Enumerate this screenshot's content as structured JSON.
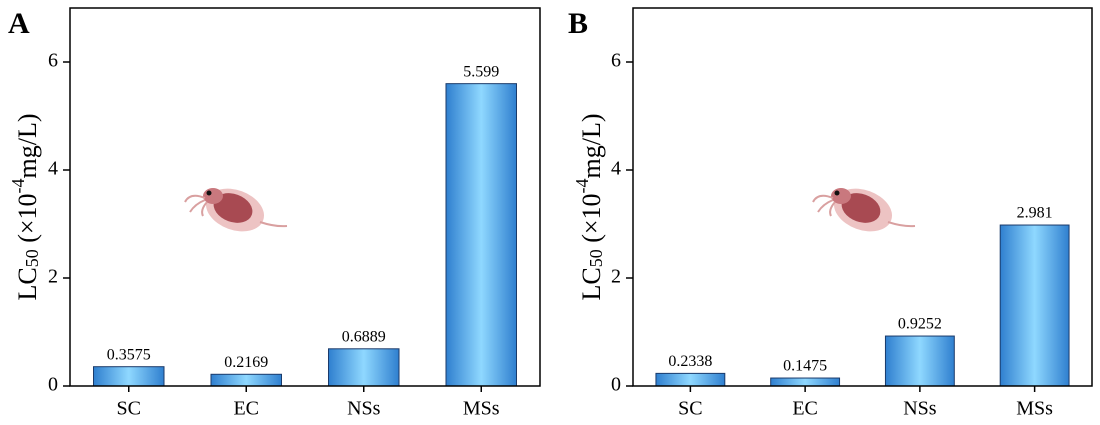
{
  "chart_data": [
    {
      "type": "bar",
      "panel_label": "A",
      "y_label": {
        "main": "LC",
        "sub": "50",
        "mid": " (×10",
        "sup": "-4",
        "unit": "mg/L)"
      },
      "categories": [
        "SC",
        "EC",
        "NSs",
        "MSs"
      ],
      "values": [
        0.3575,
        0.2169,
        0.6889,
        5.599
      ],
      "ylim": [
        0,
        7
      ],
      "yticks": [
        0,
        2,
        4,
        6
      ]
    },
    {
      "type": "bar",
      "panel_label": "B",
      "y_label": {
        "main": "LC",
        "sub": "50",
        "mid": " (×10",
        "sup": "-4",
        "unit": "mg/L)"
      },
      "categories": [
        "SC",
        "EC",
        "NSs",
        "MSs"
      ],
      "values": [
        0.2338,
        0.1475,
        0.9252,
        2.981
      ],
      "ylim": [
        0,
        7
      ],
      "yticks": [
        0,
        2,
        4,
        6
      ]
    }
  ]
}
